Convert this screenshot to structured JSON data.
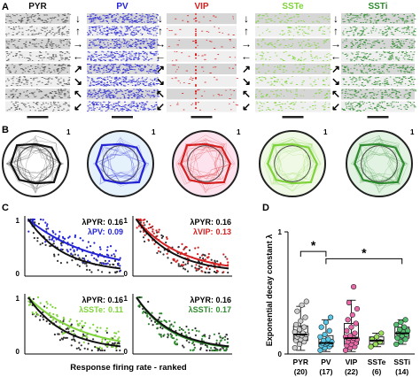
{
  "panel_labels": {
    "a": "A",
    "b": "B",
    "c": "C",
    "d": "D"
  },
  "colors": {
    "PYR": "#111111",
    "PV": "#2323d6",
    "VIP": "#d42020",
    "SSTe": "#7fd33a",
    "SSTi": "#2e8b2e",
    "grey_band": "#d6d6d6",
    "pv_box": "#58c8e8",
    "vip_box": "#e86aa8",
    "sste_box": "#9be05a",
    "ssti_box": "#55c070"
  },
  "panel_a": {
    "cell_types": [
      "PYR",
      "PV",
      "VIP",
      "SSTe",
      "SSTi"
    ],
    "arrow_icons": [
      "arrow-down-icon",
      "arrow-up-icon",
      "arrow-right-icon",
      "arrow-left-icon",
      "arrow-up-right-icon",
      "arrow-down-right-icon",
      "arrow-up-left-icon",
      "arrow-down-left-icon"
    ]
  },
  "panel_b": {
    "scale_label": "1"
  },
  "panel_c": {
    "x_label": "Response firing rate - ranked",
    "plots": [
      {
        "type": "PYR",
        "compare": "PV",
        "lambda_ref": "λPYR: 0.16",
        "lambda_cmp_sym": "λPV:",
        "lambda_cmp_val": "0.09",
        "y_max_label": "1",
        "y_min_label": "0"
      },
      {
        "type": "PYR",
        "compare": "VIP",
        "lambda_ref": "λPYR: 0.16",
        "lambda_cmp_sym": "λVIP:",
        "lambda_cmp_val": "0.13",
        "y_max_label": "1",
        "y_min_label": "0"
      },
      {
        "type": "PYR",
        "compare": "SSTe",
        "lambda_ref": "λPYR: 0.16",
        "lambda_cmp_sym": "λSSTe:",
        "lambda_cmp_val": "0.11",
        "y_max_label": "1",
        "y_min_label": "0"
      },
      {
        "type": "PYR",
        "compare": "SSTi",
        "lambda_ref": "λPYR: 0.16",
        "lambda_cmp_sym": "λSSTi:",
        "lambda_cmp_val": "0.17",
        "y_max_label": "1",
        "y_min_label": "0"
      }
    ]
  },
  "panel_d": {
    "y_label": "Exponential decay constant λ",
    "y_ticks": [
      "0",
      "1"
    ],
    "significance": [
      "*",
      "*"
    ],
    "chart_data": {
      "type": "box",
      "categories": [
        "PYR",
        "PV",
        "VIP",
        "SSTe",
        "SSTi"
      ],
      "counts": [
        "(20)",
        "(17)",
        "(22)",
        "(6)",
        "(14)"
      ],
      "ylim": [
        0,
        1
      ],
      "series": [
        {
          "name": "PYR",
          "median": 0.16,
          "q1": 0.11,
          "q3": 0.23,
          "min": 0.03,
          "max": 0.39,
          "points": [
            0.05,
            0.08,
            0.1,
            0.11,
            0.12,
            0.13,
            0.14,
            0.15,
            0.16,
            0.16,
            0.17,
            0.18,
            0.2,
            0.22,
            0.24,
            0.27,
            0.3,
            0.35,
            0.4,
            0.43
          ]
        },
        {
          "name": "PV",
          "median": 0.09,
          "q1": 0.06,
          "q3": 0.15,
          "min": 0.02,
          "max": 0.28,
          "points": [
            0.03,
            0.05,
            0.06,
            0.07,
            0.08,
            0.08,
            0.09,
            0.09,
            0.1,
            0.11,
            0.12,
            0.14,
            0.16,
            0.19,
            0.22,
            0.26,
            0.3
          ]
        },
        {
          "name": "VIP",
          "median": 0.13,
          "q1": 0.08,
          "q3": 0.25,
          "min": 0.02,
          "max": 0.44,
          "points": [
            0.03,
            0.05,
            0.06,
            0.07,
            0.08,
            0.09,
            0.1,
            0.11,
            0.12,
            0.13,
            0.13,
            0.14,
            0.15,
            0.17,
            0.19,
            0.22,
            0.25,
            0.28,
            0.32,
            0.37,
            0.42,
            0.55
          ]
        },
        {
          "name": "SSTe",
          "median": 0.11,
          "q1": 0.08,
          "q3": 0.14,
          "min": 0.06,
          "max": 0.17,
          "points": [
            0.06,
            0.08,
            0.1,
            0.12,
            0.14,
            0.17
          ]
        },
        {
          "name": "SSTi",
          "median": 0.17,
          "q1": 0.13,
          "q3": 0.22,
          "min": 0.08,
          "max": 0.28,
          "points": [
            0.08,
            0.1,
            0.12,
            0.13,
            0.15,
            0.16,
            0.17,
            0.18,
            0.19,
            0.2,
            0.22,
            0.24,
            0.26,
            0.28
          ]
        }
      ]
    }
  }
}
